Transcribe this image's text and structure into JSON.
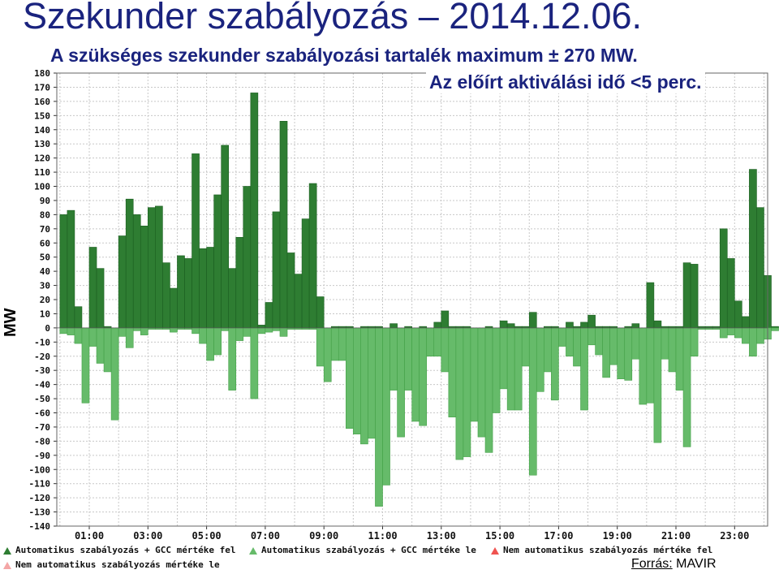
{
  "header": {
    "title": "Szekunder szabályozás – 2014.12.06.",
    "subtitle1": "A szükséges szekunder szabályozási tartalék maximum ± 270 MW.",
    "subtitle2": "Az előírt aktiválási idő <5 perc."
  },
  "source": {
    "label": "Forrás:",
    "value": "MAVIR"
  },
  "legend": [
    {
      "label": "Automatikus szabályozás + GCC mértéke fel",
      "color": "#2e7d32"
    },
    {
      "label": "Automatikus szabályozás + GCC mértéke le",
      "color": "#66bb6a"
    },
    {
      "label": "Nem automatikus szabályozás mértéke fel",
      "color": "#ef5350"
    },
    {
      "label": "Nem automatikus szabályozás mértéke le",
      "color": "#f4a6a6"
    }
  ],
  "chart_data": {
    "type": "bar",
    "ylabel": "MW",
    "ylim": [
      -140,
      180
    ],
    "yticks": [
      -140,
      -130,
      -120,
      -110,
      -100,
      -90,
      -80,
      -70,
      -60,
      -50,
      -40,
      -30,
      -20,
      -10,
      0,
      10,
      20,
      30,
      40,
      50,
      60,
      70,
      80,
      90,
      100,
      110,
      120,
      130,
      140,
      150,
      160,
      170,
      180
    ],
    "xticks": [
      "01:00",
      "03:00",
      "05:00",
      "07:00",
      "09:00",
      "11:00",
      "13:00",
      "15:00",
      "17:00",
      "19:00",
      "21:00",
      "23:00"
    ],
    "x_interval_minutes": 15,
    "grid": true,
    "legend_position": "bottom",
    "series": [
      {
        "name": "Automatikus szabályozás + GCC mértéke fel",
        "color": "#2e7d32",
        "values": [
          80,
          83,
          15,
          0,
          57,
          42,
          1,
          0,
          65,
          91,
          80,
          72,
          85,
          86,
          46,
          28,
          51,
          49,
          123,
          56,
          57,
          94,
          129,
          42,
          64,
          100,
          166,
          2,
          18,
          82,
          146,
          53,
          38,
          77,
          102,
          22,
          0,
          1,
          1,
          1,
          0,
          1,
          1,
          1,
          0,
          3,
          0,
          1,
          0,
          1,
          0,
          4,
          12,
          1,
          1,
          1,
          0,
          0,
          1,
          0,
          5,
          3,
          1,
          1,
          11,
          0,
          1,
          1,
          0,
          4,
          1,
          4,
          9,
          1,
          1,
          1,
          0,
          1,
          3,
          0,
          32,
          5,
          1,
          1,
          1,
          46,
          45,
          1,
          1,
          1,
          70,
          49,
          19,
          8,
          112,
          85,
          37,
          1
        ]
      },
      {
        "name": "Automatikus szabályozás + GCC mértéke le",
        "color": "#66bb6a",
        "values": [
          -4,
          -5,
          -11,
          -53,
          -13,
          -25,
          -31,
          -65,
          -6,
          -14,
          -2,
          -5,
          -1,
          -1,
          -1,
          -3,
          -1,
          -1,
          -4,
          -11,
          -23,
          -19,
          -2,
          -44,
          -9,
          -6,
          -50,
          -4,
          -3,
          -2,
          -6,
          -1,
          -1,
          -1,
          -1,
          -27,
          -38,
          -23,
          -23,
          -71,
          -75,
          -82,
          -78,
          -126,
          -111,
          -44,
          -77,
          -44,
          -66,
          -69,
          -20,
          -20,
          -31,
          -63,
          -93,
          -91,
          -66,
          -77,
          -88,
          -60,
          -43,
          -58,
          -58,
          -27,
          -104,
          -45,
          -31,
          -51,
          -13,
          -20,
          -27,
          -58,
          -12,
          -19,
          -35,
          -26,
          -36,
          -37,
          -22,
          -54,
          -53,
          -81,
          -22,
          -31,
          -44,
          -84,
          -20,
          -1,
          -1,
          -1,
          -7,
          -5,
          -7,
          -11,
          -20,
          -11,
          -8,
          -2
        ]
      }
    ]
  }
}
